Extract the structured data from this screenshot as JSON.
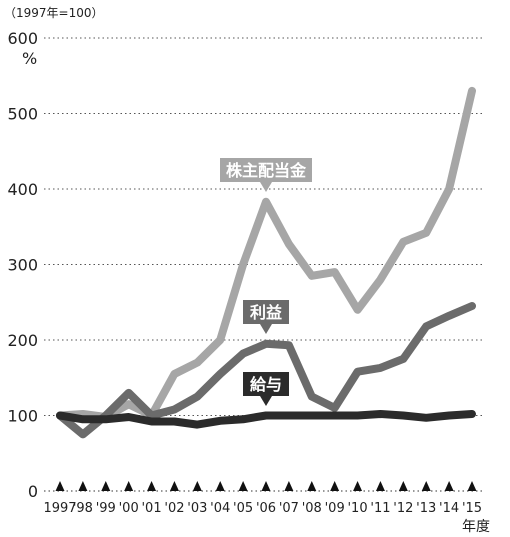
{
  "chart_data": {
    "type": "line",
    "note": "（1997年=100）",
    "yunit": "%",
    "xlabel": "年度",
    "ylim": [
      0,
      600
    ],
    "yticks": [
      0,
      100,
      200,
      300,
      400,
      500,
      600
    ],
    "grid": true,
    "categories": [
      "1997",
      "'98",
      "'99",
      "'00",
      "'01",
      "'02",
      "'03",
      "'04",
      "'05",
      "'06",
      "'07",
      "'08",
      "'09",
      "'10",
      "'11",
      "'12",
      "'13",
      "'14",
      "'15"
    ],
    "series": [
      {
        "name": "株主配当金",
        "color": "#a6a6a6",
        "values": [
          100,
          102,
          98,
          115,
          100,
          155,
          170,
          200,
          300,
          383,
          327,
          285,
          290,
          240,
          280,
          330,
          342,
          400,
          530
        ]
      },
      {
        "name": "利益",
        "color": "#6b6b6b",
        "values": [
          100,
          75,
          100,
          130,
          100,
          108,
          125,
          155,
          182,
          195,
          193,
          125,
          110,
          158,
          163,
          175,
          218,
          232,
          245
        ]
      },
      {
        "name": "給与",
        "color": "#2b2b2b",
        "values": [
          100,
          95,
          95,
          98,
          92,
          92,
          88,
          93,
          95,
          100,
          100,
          100,
          100,
          100,
          102,
          100,
          97,
          100,
          102
        ]
      }
    ]
  }
}
